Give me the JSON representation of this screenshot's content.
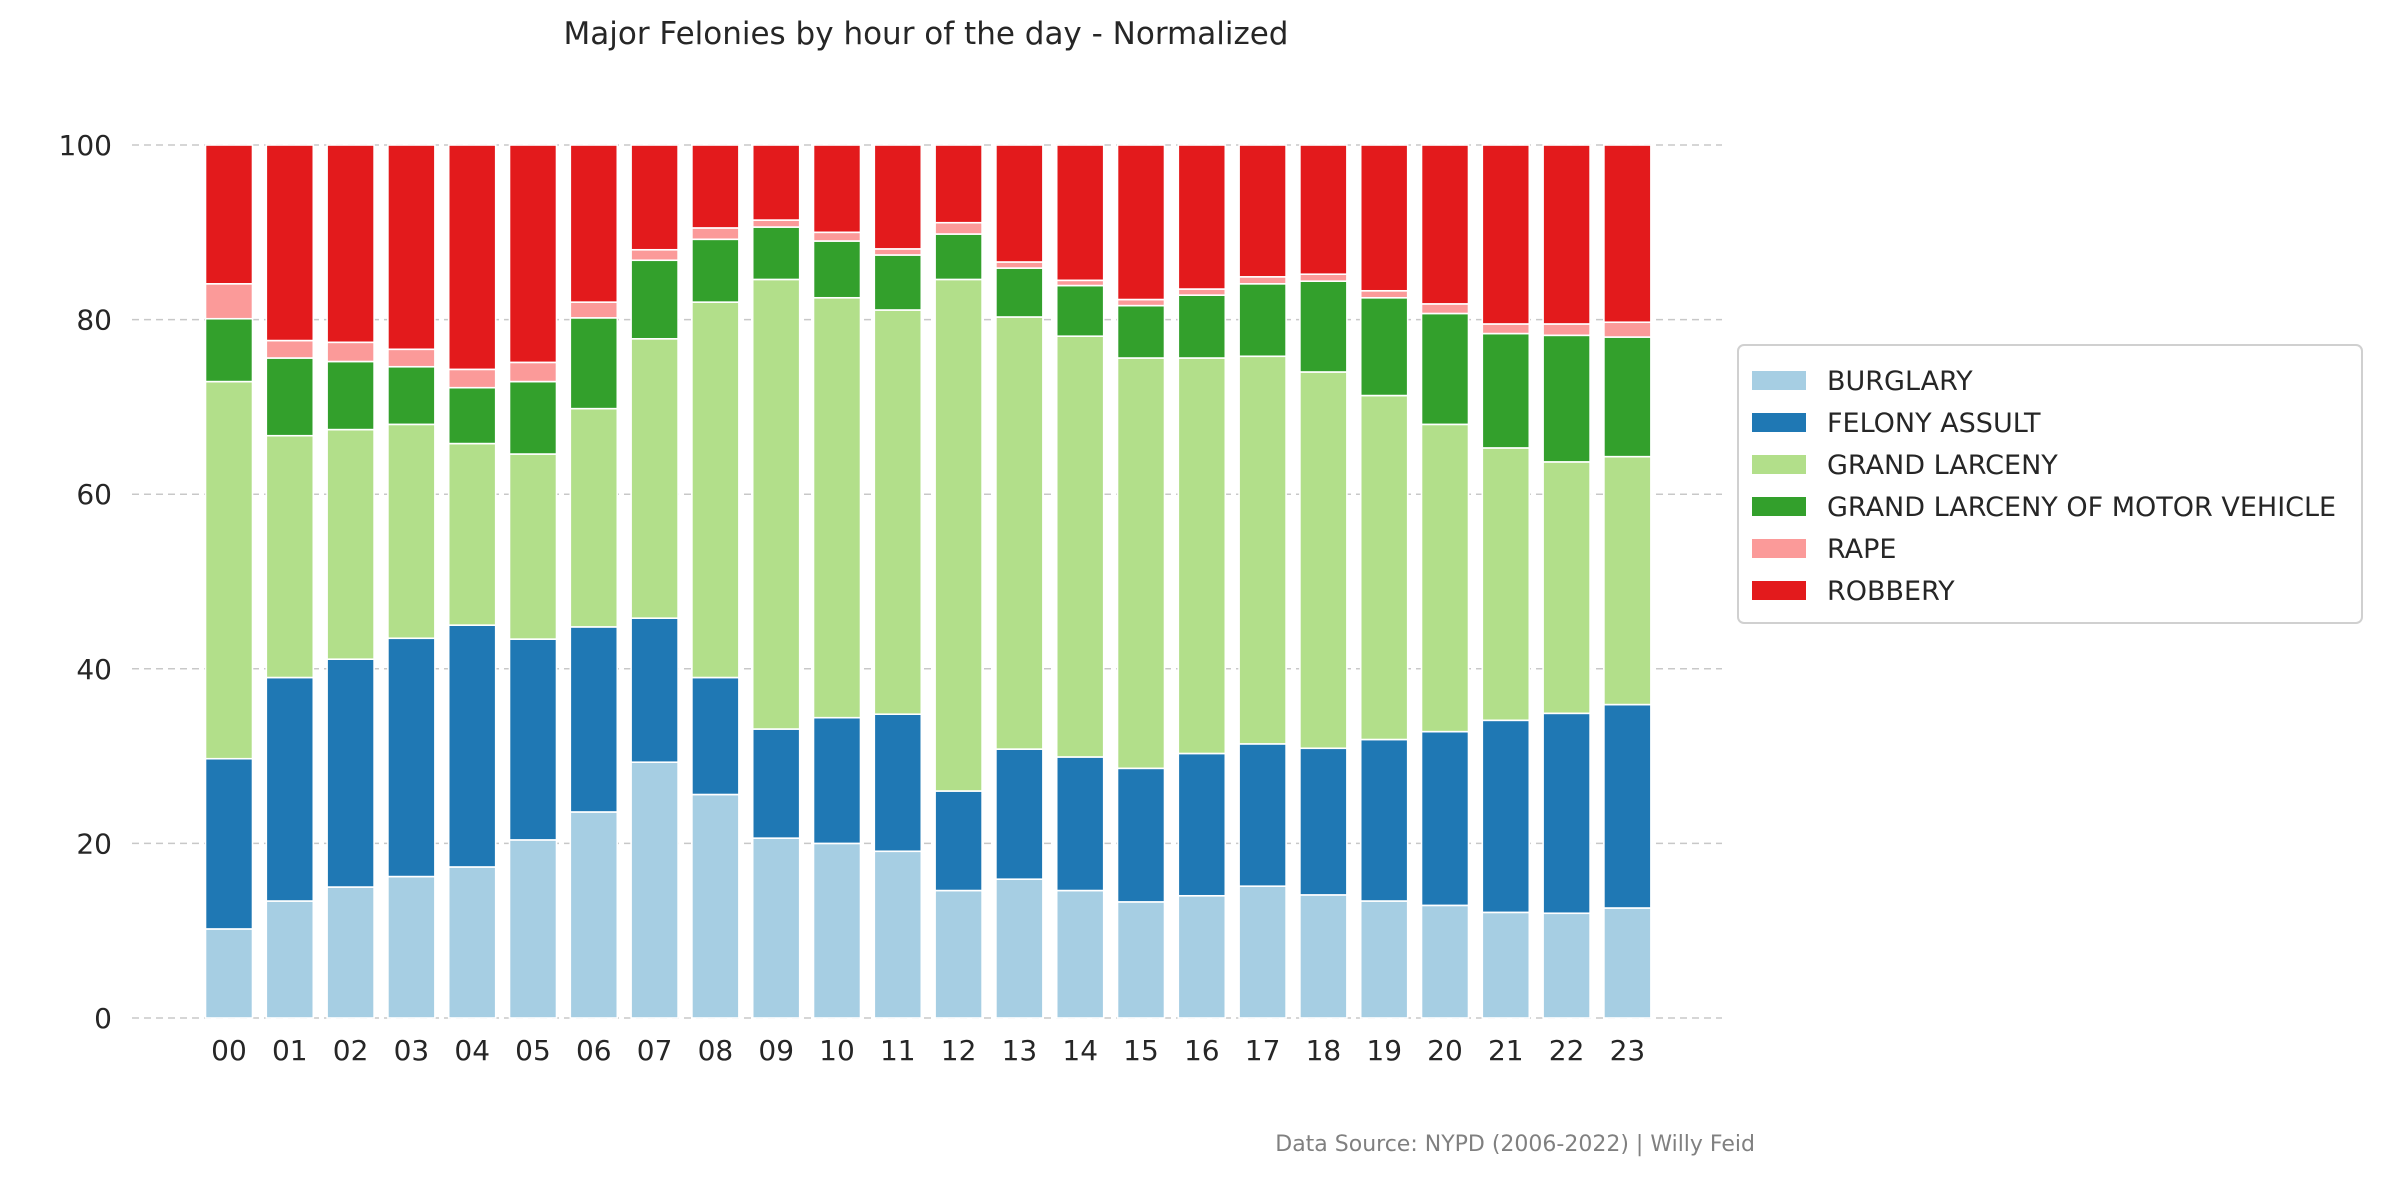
{
  "chart_data": {
    "type": "bar",
    "stacked": true,
    "normalized": true,
    "title": "Major Felonies by hour of the day - Normalized",
    "xlabel": "",
    "ylabel": "",
    "ylim": [
      0,
      100
    ],
    "yticks": [
      0,
      20,
      40,
      60,
      80,
      100
    ],
    "grid": "horizontal dashed",
    "legend_position": "right",
    "categories": [
      "00",
      "01",
      "02",
      "03",
      "04",
      "05",
      "06",
      "07",
      "08",
      "09",
      "10",
      "11",
      "12",
      "13",
      "14",
      "15",
      "16",
      "17",
      "18",
      "19",
      "20",
      "21",
      "22",
      "23"
    ],
    "series": [
      {
        "name": "BURGLARY",
        "color": "#a6cee3",
        "values": [
          10.2,
          13.4,
          15.0,
          16.2,
          17.3,
          20.4,
          23.6,
          29.3,
          25.6,
          20.6,
          20.0,
          19.1,
          14.6,
          15.9,
          14.6,
          13.3,
          14.0,
          15.1,
          14.1,
          13.4,
          12.9,
          12.1,
          12.0,
          12.6
        ]
      },
      {
        "name": "FELONY ASSULT",
        "color": "#1f78b4",
        "values": [
          19.5,
          25.6,
          26.1,
          27.3,
          27.7,
          23.0,
          21.2,
          16.5,
          13.4,
          12.5,
          14.4,
          15.7,
          11.4,
          14.9,
          15.3,
          15.3,
          16.3,
          16.3,
          16.8,
          18.5,
          19.9,
          22.0,
          22.9,
          23.3
        ]
      },
      {
        "name": "GRAND LARCENY",
        "color": "#b2df8a",
        "values": [
          43.2,
          27.7,
          26.3,
          24.5,
          20.8,
          21.2,
          25.0,
          32.0,
          43.0,
          51.5,
          48.1,
          46.3,
          58.6,
          49.5,
          48.2,
          47.0,
          45.3,
          44.4,
          43.1,
          39.4,
          35.2,
          31.2,
          28.8,
          28.4
        ]
      },
      {
        "name": "GRAND LARCENY OF MOTOR VEHICLE",
        "color": "#33a02c",
        "values": [
          7.2,
          8.9,
          7.8,
          6.6,
          6.4,
          8.3,
          10.4,
          9.0,
          7.2,
          6.0,
          6.5,
          6.3,
          5.2,
          5.6,
          5.8,
          6.0,
          7.2,
          8.3,
          10.4,
          11.2,
          12.7,
          13.1,
          14.5,
          13.7
        ]
      },
      {
        "name": "RAPE",
        "color": "#fb9a99",
        "values": [
          4.0,
          2.0,
          2.2,
          2.0,
          2.1,
          2.2,
          1.8,
          1.2,
          1.3,
          0.8,
          1.0,
          0.7,
          1.3,
          0.7,
          0.6,
          0.7,
          0.7,
          0.8,
          0.8,
          0.8,
          1.1,
          1.1,
          1.3,
          1.7
        ]
      },
      {
        "name": "ROBBERY",
        "color": "#e31a1c",
        "values": [
          15.9,
          22.4,
          22.6,
          23.4,
          25.7,
          24.9,
          18.0,
          12.0,
          9.5,
          8.6,
          10.0,
          11.9,
          8.9,
          13.4,
          15.5,
          17.7,
          16.5,
          15.1,
          14.8,
          16.7,
          18.2,
          20.5,
          20.5,
          20.3
        ]
      }
    ],
    "source_note": "Data Source: NYPD (2006-2022) | Willy Feid"
  }
}
